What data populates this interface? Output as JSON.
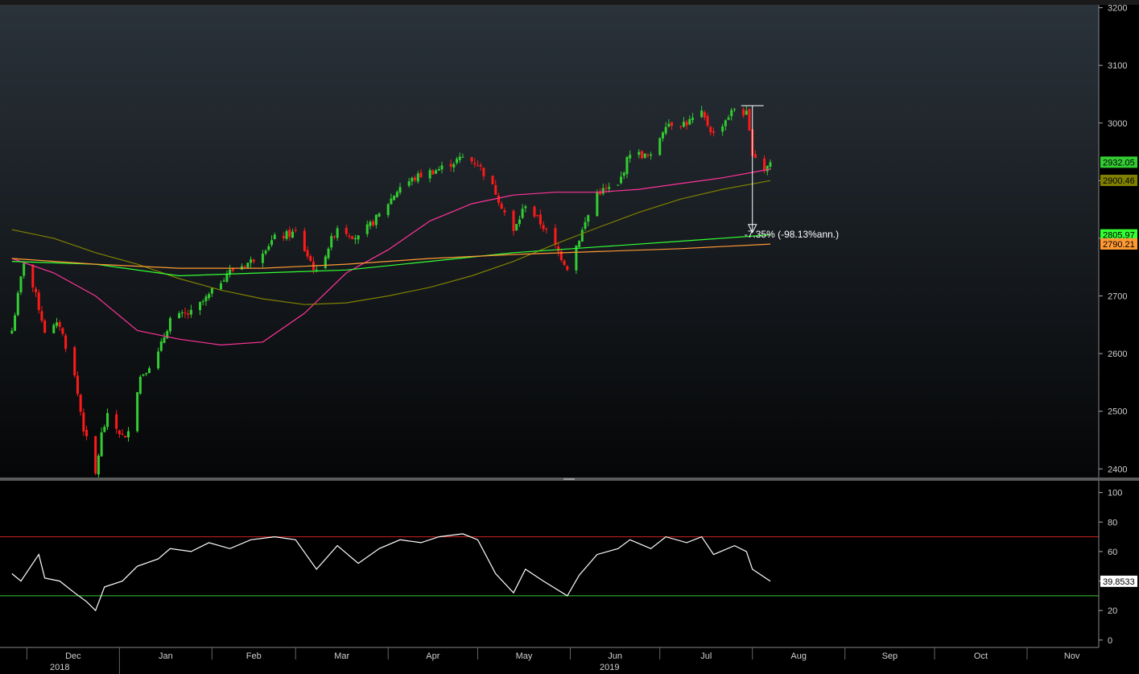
{
  "chart_data": [
    {
      "type": "candlestick",
      "title": "",
      "y_ticks": [
        2400,
        2500,
        2600,
        2700,
        2800,
        2900,
        3000,
        3100,
        3200
      ],
      "y_tick_labels": [
        "2400",
        "2500",
        "2600",
        "2700",
        "2800",
        "2900",
        "3000",
        "3100",
        "3200"
      ],
      "ylim": [
        2385,
        3205
      ],
      "x_month_labels": [
        "Dec",
        "Jan",
        "Feb",
        "Mar",
        "Apr",
        "May",
        "Jun",
        "Jul",
        "Aug",
        "Sep",
        "Oct",
        "Nov"
      ],
      "x_year_labels": [
        "2018",
        "2019"
      ],
      "colors": {
        "up": "#33cc33",
        "down": "#ff1a1a",
        "ma50": "#ff3399",
        "ma100": "#808000",
        "ma200a": "#33ff33",
        "ma200b": "#ff9933"
      },
      "price_path": [
        [
          "2018-11-26",
          2640
        ],
        [
          "2018-11-30",
          2760
        ],
        [
          "2018-12-04",
          2700
        ],
        [
          "2018-12-07",
          2640
        ],
        [
          "2018-12-12",
          2650
        ],
        [
          "2018-12-17",
          2560
        ],
        [
          "2018-12-20",
          2470
        ],
        [
          "2018-12-24",
          2390
        ],
        [
          "2018-12-26",
          2460
        ],
        [
          "2018-12-28",
          2490
        ],
        [
          "2019-01-03",
          2450
        ],
        [
          "2019-01-08",
          2560
        ],
        [
          "2019-01-14",
          2600
        ],
        [
          "2019-01-18",
          2660
        ],
        [
          "2019-01-25",
          2670
        ],
        [
          "2019-01-31",
          2700
        ],
        [
          "2019-02-06",
          2740
        ],
        [
          "2019-02-14",
          2760
        ],
        [
          "2019-02-22",
          2800
        ],
        [
          "2019-03-01",
          2810
        ],
        [
          "2019-03-08",
          2740
        ],
        [
          "2019-03-15",
          2820
        ],
        [
          "2019-03-22",
          2800
        ],
        [
          "2019-03-29",
          2840
        ],
        [
          "2019-04-05",
          2890
        ],
        [
          "2019-04-12",
          2910
        ],
        [
          "2019-04-18",
          2920
        ],
        [
          "2019-04-26",
          2940
        ],
        [
          "2019-05-01",
          2930
        ],
        [
          "2019-05-07",
          2880
        ],
        [
          "2019-05-13",
          2810
        ],
        [
          "2019-05-17",
          2860
        ],
        [
          "2019-05-23",
          2820
        ],
        [
          "2019-05-31",
          2750
        ],
        [
          "2019-06-04",
          2800
        ],
        [
          "2019-06-10",
          2880
        ],
        [
          "2019-06-17",
          2890
        ],
        [
          "2019-06-21",
          2950
        ],
        [
          "2019-06-28",
          2940
        ],
        [
          "2019-07-03",
          3000
        ],
        [
          "2019-07-10",
          3000
        ],
        [
          "2019-07-15",
          3015
        ],
        [
          "2019-07-19",
          2980
        ],
        [
          "2019-07-26",
          3025
        ],
        [
          "2019-07-30",
          3015
        ],
        [
          "2019-08-01",
          2950
        ],
        [
          "2019-08-05",
          2920
        ],
        [
          "2019-08-07",
          2932
        ]
      ],
      "ma_lines": [
        {
          "name": "ma50",
          "points": [
            [
              "2018-11-26",
              2765
            ],
            [
              "2018-12-10",
              2740
            ],
            [
              "2018-12-24",
              2700
            ],
            [
              "2019-01-07",
              2640
            ],
            [
              "2019-01-21",
              2625
            ],
            [
              "2019-02-04",
              2615
            ],
            [
              "2019-02-18",
              2620
            ],
            [
              "2019-03-04",
              2670
            ],
            [
              "2019-03-18",
              2740
            ],
            [
              "2019-04-01",
              2780
            ],
            [
              "2019-04-15",
              2830
            ],
            [
              "2019-04-29",
              2860
            ],
            [
              "2019-05-13",
              2875
            ],
            [
              "2019-05-27",
              2880
            ],
            [
              "2019-06-10",
              2880
            ],
            [
              "2019-06-24",
              2885
            ],
            [
              "2019-07-08",
              2895
            ],
            [
              "2019-07-22",
              2905
            ],
            [
              "2019-08-07",
              2920
            ]
          ]
        },
        {
          "name": "ma100",
          "points": [
            [
              "2018-11-26",
              2815
            ],
            [
              "2018-12-10",
              2800
            ],
            [
              "2018-12-24",
              2775
            ],
            [
              "2019-01-07",
              2755
            ],
            [
              "2019-01-21",
              2730
            ],
            [
              "2019-02-04",
              2710
            ],
            [
              "2019-02-18",
              2695
            ],
            [
              "2019-03-04",
              2685
            ],
            [
              "2019-03-18",
              2688
            ],
            [
              "2019-04-01",
              2700
            ],
            [
              "2019-04-15",
              2715
            ],
            [
              "2019-04-29",
              2735
            ],
            [
              "2019-05-13",
              2760
            ],
            [
              "2019-05-27",
              2790
            ],
            [
              "2019-06-10",
              2818
            ],
            [
              "2019-06-24",
              2845
            ],
            [
              "2019-07-08",
              2868
            ],
            [
              "2019-07-22",
              2885
            ],
            [
              "2019-08-07",
              2900
            ]
          ]
        },
        {
          "name": "ma200a",
          "points": [
            [
              "2018-11-26",
              2760
            ],
            [
              "2018-12-24",
              2755
            ],
            [
              "2019-01-21",
              2735
            ],
            [
              "2019-02-18",
              2740
            ],
            [
              "2019-03-18",
              2745
            ],
            [
              "2019-04-15",
              2760
            ],
            [
              "2019-05-13",
              2775
            ],
            [
              "2019-06-10",
              2785
            ],
            [
              "2019-07-08",
              2795
            ],
            [
              "2019-08-07",
              2806
            ]
          ]
        },
        {
          "name": "ma200b",
          "points": [
            [
              "2018-11-26",
              2765
            ],
            [
              "2018-12-24",
              2755
            ],
            [
              "2019-01-21",
              2748
            ],
            [
              "2019-02-18",
              2748
            ],
            [
              "2019-03-18",
              2755
            ],
            [
              "2019-04-15",
              2765
            ],
            [
              "2019-05-13",
              2772
            ],
            [
              "2019-06-10",
              2777
            ],
            [
              "2019-07-08",
              2782
            ],
            [
              "2019-08-07",
              2790
            ]
          ]
        }
      ],
      "last_values": [
        {
          "name": "ma50",
          "label": "2932.05",
          "value": 2932.05,
          "color": "#33cc33"
        },
        {
          "name": "ma100",
          "label": "2900.46",
          "value": 2900.46,
          "color": "#808000"
        },
        {
          "name": "ma200a",
          "label": "2805.97",
          "value": 2805.97,
          "color": "#33ff33"
        },
        {
          "name": "ma200b",
          "label": "2790.21",
          "value": 2790.21,
          "color": "#ff9933"
        }
      ],
      "annotation": {
        "text": "-7.35% (-98.13%ann.)",
        "from_value": 3030,
        "to_value": 2810,
        "at_date": "2019-08-01"
      }
    },
    {
      "type": "line",
      "title": "",
      "y_ticks": [
        0,
        20,
        40,
        60,
        80,
        100
      ],
      "y_tick_labels": [
        "0",
        "20",
        "40",
        "60",
        "80",
        "100"
      ],
      "ylim": [
        -5,
        108
      ],
      "upper_band": 70,
      "lower_band": 30,
      "band_colors": {
        "upper": "#cc2222",
        "lower": "#33cc33"
      },
      "series": [
        {
          "name": "RSI",
          "points": [
            [
              "2018-11-26",
              45
            ],
            [
              "2018-11-29",
              40
            ],
            [
              "2018-12-03",
              52
            ],
            [
              "2018-12-05",
              58
            ],
            [
              "2018-12-07",
              42
            ],
            [
              "2018-12-12",
              40
            ],
            [
              "2018-12-17",
              32
            ],
            [
              "2018-12-21",
              26
            ],
            [
              "2018-12-24",
              20
            ],
            [
              "2018-12-27",
              36
            ],
            [
              "2019-01-02",
              40
            ],
            [
              "2019-01-07",
              50
            ],
            [
              "2019-01-14",
              55
            ],
            [
              "2019-01-18",
              62
            ],
            [
              "2019-01-25",
              60
            ],
            [
              "2019-01-31",
              66
            ],
            [
              "2019-02-07",
              62
            ],
            [
              "2019-02-14",
              68
            ],
            [
              "2019-02-22",
              70
            ],
            [
              "2019-03-01",
              68
            ],
            [
              "2019-03-08",
              48
            ],
            [
              "2019-03-15",
              64
            ],
            [
              "2019-03-22",
              52
            ],
            [
              "2019-03-29",
              62
            ],
            [
              "2019-04-05",
              68
            ],
            [
              "2019-04-12",
              66
            ],
            [
              "2019-04-18",
              70
            ],
            [
              "2019-04-26",
              72
            ],
            [
              "2019-05-01",
              68
            ],
            [
              "2019-05-07",
              45
            ],
            [
              "2019-05-13",
              32
            ],
            [
              "2019-05-17",
              48
            ],
            [
              "2019-05-23",
              40
            ],
            [
              "2019-05-31",
              30
            ],
            [
              "2019-06-04",
              44
            ],
            [
              "2019-06-10",
              58
            ],
            [
              "2019-06-17",
              62
            ],
            [
              "2019-06-21",
              68
            ],
            [
              "2019-06-28",
              62
            ],
            [
              "2019-07-03",
              70
            ],
            [
              "2019-07-10",
              66
            ],
            [
              "2019-07-15",
              70
            ],
            [
              "2019-07-19",
              58
            ],
            [
              "2019-07-26",
              64
            ],
            [
              "2019-07-30",
              60
            ],
            [
              "2019-08-01",
              48
            ],
            [
              "2019-08-07",
              39.85
            ]
          ]
        }
      ],
      "last_value": {
        "label": "39.8533",
        "value": 39.8533
      }
    }
  ]
}
